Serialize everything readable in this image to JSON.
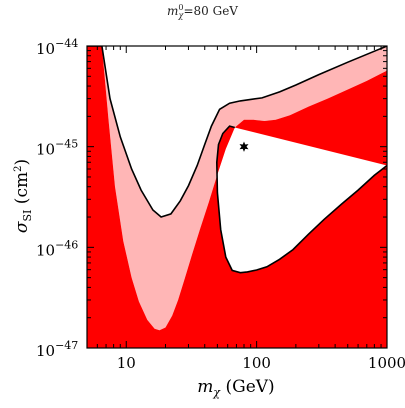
{
  "title": {
    "sym": "m",
    "sup": "0",
    "sub": "χ",
    "text": "=80 GeV"
  },
  "chart_data": {
    "type": "area",
    "title": "m_χ^0=80 GeV",
    "xlabel": "m_χ (GeV)",
    "ylabel": "σ_SI (cm²)",
    "xscale": "log",
    "yscale": "log",
    "xlim": [
      5,
      1000
    ],
    "ylim": [
      1e-47,
      1e-44
    ],
    "x_ticks": [
      {
        "value": 10,
        "label": "10"
      },
      {
        "value": 100,
        "label": "100"
      },
      {
        "value": 1000,
        "label": "1000"
      }
    ],
    "y_ticks": [
      {
        "value": 1e-44,
        "label": "10",
        "exp": "−44"
      },
      {
        "value": 1e-45,
        "label": "10",
        "exp": "−45"
      },
      {
        "value": 1e-46,
        "label": "10",
        "exp": "−46"
      },
      {
        "value": 1e-47,
        "label": "10",
        "exp": "−47"
      }
    ],
    "colors": {
      "dark_region": "#ff0000",
      "light_region": "#ffb6b6",
      "line": "#000000"
    },
    "series": [
      {
        "role": "upper-envelope",
        "points": [
          [
            5,
            1e-44
          ],
          [
            6.5,
            1e-44
          ],
          [
            7.5,
            3e-45
          ],
          [
            9,
            1.25e-45
          ],
          [
            11,
            6e-46
          ],
          [
            13,
            3.7e-46
          ],
          [
            16,
            2.35e-46
          ],
          [
            18.5,
            2e-46
          ],
          [
            22,
            2.15e-46
          ],
          [
            26,
            2.9e-46
          ],
          [
            30,
            4.1e-46
          ],
          [
            35,
            6.5e-46
          ],
          [
            40,
            1.05e-45
          ],
          [
            45,
            1.6e-45
          ],
          [
            52,
            2.35e-45
          ],
          [
            62,
            2.7e-45
          ],
          [
            75,
            2.85e-45
          ],
          [
            90,
            2.95e-45
          ],
          [
            110,
            3.05e-45
          ],
          [
            150,
            3.5e-45
          ],
          [
            200,
            4.1e-45
          ],
          [
            300,
            5.2e-45
          ],
          [
            500,
            6.9e-45
          ],
          [
            1000,
            1e-44
          ]
        ]
      },
      {
        "role": "lower-bound-of-light-band",
        "points": [
          [
            5,
            1e-44
          ],
          [
            6.5,
            1e-44
          ],
          [
            7.3,
            1.9e-45
          ],
          [
            8.2,
            4e-46
          ],
          [
            9.5,
            1.15e-46
          ],
          [
            11,
            5e-47
          ],
          [
            12.5,
            2.9e-47
          ],
          [
            14.5,
            1.9e-47
          ],
          [
            16.5,
            1.55e-47
          ],
          [
            18,
            1.5e-47
          ],
          [
            20,
            1.6e-47
          ],
          [
            22.5,
            2.1e-47
          ],
          [
            25,
            3e-47
          ],
          [
            28,
            4.8e-47
          ],
          [
            32,
            8.5e-47
          ],
          [
            37,
            1.55e-46
          ],
          [
            43,
            2.8e-46
          ],
          [
            50,
            5.3e-46
          ],
          [
            58,
            9.5e-46
          ],
          [
            68,
            1.55e-45
          ],
          [
            80,
            1.85e-45
          ],
          [
            95,
            1.85e-45
          ],
          [
            115,
            1.8e-45
          ],
          [
            140,
            1.85e-45
          ],
          [
            180,
            2.05e-45
          ],
          [
            250,
            2.5e-45
          ],
          [
            350,
            3e-45
          ],
          [
            500,
            3.7e-45
          ],
          [
            700,
            4.5e-45
          ],
          [
            1000,
            5.7e-45
          ]
        ]
      },
      {
        "role": "lower-envelope",
        "points": [
          [
            1000,
            6.5e-46
          ],
          [
            800,
            5.2e-46
          ],
          [
            600,
            3.7e-46
          ],
          [
            450,
            2.7e-46
          ],
          [
            330,
            1.9e-46
          ],
          [
            250,
            1.35e-46
          ],
          [
            190,
            9.5e-47
          ],
          [
            150,
            7.6e-47
          ],
          [
            120,
            6.4e-47
          ],
          [
            100,
            5.95e-47
          ],
          [
            85,
            5.7e-47
          ],
          [
            75,
            5.6e-47
          ],
          [
            65,
            5.9e-47
          ],
          [
            58,
            8e-47
          ],
          [
            53,
            1.5e-46
          ],
          [
            50,
            3.5e-46
          ],
          [
            49.5,
            7e-46
          ],
          [
            51,
            1.05e-45
          ],
          [
            55,
            1.35e-45
          ],
          [
            62,
            1.6e-45
          ],
          [
            68,
            1.55e-45
          ]
        ]
      }
    ],
    "marker": {
      "x": 80,
      "y": 1e-45,
      "symbol": "star"
    }
  }
}
